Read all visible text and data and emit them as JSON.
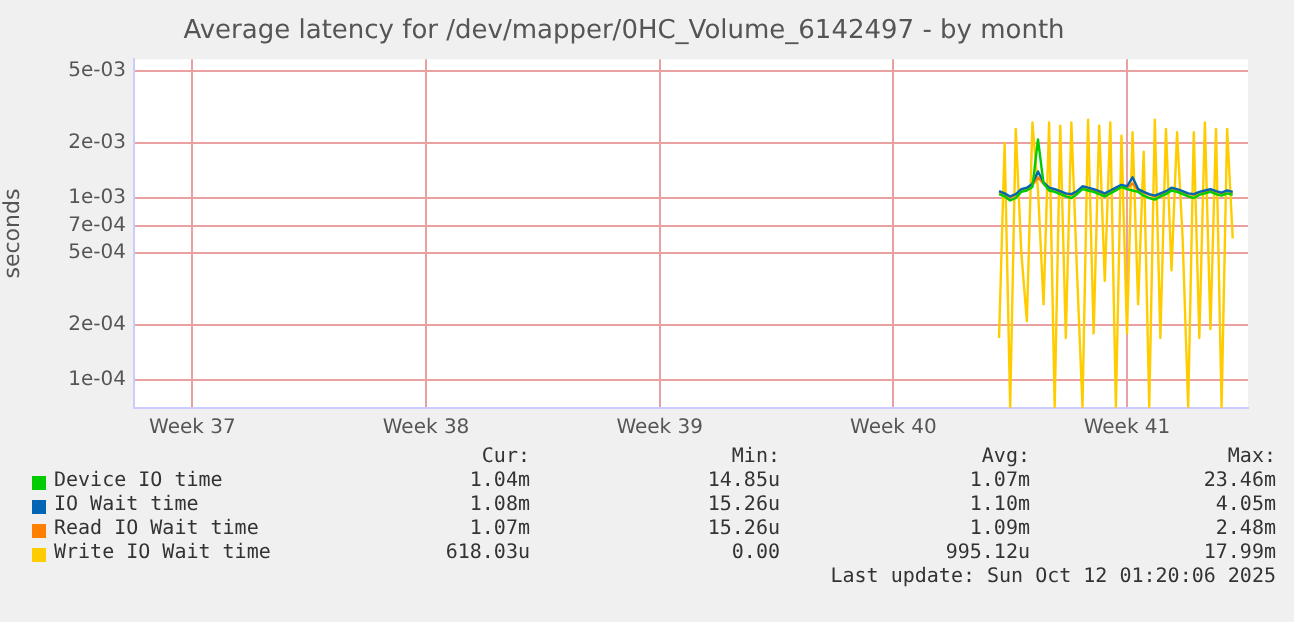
{
  "chart_data": {
    "type": "line",
    "title": "Average latency for /dev/mapper/0HC_Volume_6142497 - by month",
    "ylabel": "seconds",
    "log": "y",
    "grid": true,
    "legend": "bottom",
    "marker": "none",
    "line_style": "solid",
    "x": [
      "2025-10-05T16:00",
      "2025-10-05T20:00",
      "2025-10-06T00:00",
      "2025-10-06T04:00",
      "2025-10-06T08:00",
      "2025-10-06T12:00",
      "2025-10-06T16:00",
      "2025-10-06T20:00",
      "2025-10-07T00:00",
      "2025-10-07T04:00",
      "2025-10-07T08:00",
      "2025-10-07T12:00",
      "2025-10-07T16:00",
      "2025-10-07T20:00",
      "2025-10-08T00:00",
      "2025-10-08T04:00",
      "2025-10-08T08:00",
      "2025-10-08T12:00",
      "2025-10-08T16:00",
      "2025-10-08T20:00",
      "2025-10-09T00:00",
      "2025-10-09T04:00",
      "2025-10-09T08:00",
      "2025-10-09T12:00",
      "2025-10-09T16:00",
      "2025-10-09T20:00",
      "2025-10-10T00:00",
      "2025-10-10T04:00",
      "2025-10-10T08:00",
      "2025-10-10T12:00",
      "2025-10-10T16:00",
      "2025-10-10T20:00",
      "2025-10-11T00:00",
      "2025-10-11T04:00",
      "2025-10-11T08:00",
      "2025-10-11T12:00",
      "2025-10-11T16:00",
      "2025-10-11T20:00",
      "2025-10-12T00:00",
      "2025-10-12T04:00",
      "2025-10-12T08:00",
      "2025-10-12T12:00",
      "2025-10-12T16:00"
    ],
    "xlim": [
      "2025-09-09T18:00",
      "2025-10-13T03:00"
    ],
    "xticks": [
      {
        "value": "2025-09-11T12:00",
        "label": "Week 37"
      },
      {
        "value": "2025-09-18T12:00",
        "label": "Week 38"
      },
      {
        "value": "2025-09-25T12:00",
        "label": "Week 39"
      },
      {
        "value": "2025-10-02T12:00",
        "label": "Week 40"
      },
      {
        "value": "2025-10-09T12:00",
        "label": "Week 41"
      }
    ],
    "ylim": [
      7e-05,
      0.0058
    ],
    "yticks": [
      {
        "value": 0.0001,
        "label": "1e-04"
      },
      {
        "value": 0.0002,
        "label": "2e-04"
      },
      {
        "value": 0.0005,
        "label": "5e-04"
      },
      {
        "value": 0.0007,
        "label": "7e-04"
      },
      {
        "value": 0.001,
        "label": "1e-03"
      },
      {
        "value": 0.002,
        "label": "2e-03"
      },
      {
        "value": 0.005,
        "label": "5e-03"
      }
    ],
    "series": [
      {
        "name": "Device IO time",
        "color": "#00cc00",
        "values": [
          0.00105,
          0.00102,
          0.00097,
          0.001,
          0.00108,
          0.0011,
          0.00115,
          0.0021,
          0.0012,
          0.0011,
          0.00108,
          0.00105,
          0.00102,
          0.001,
          0.00105,
          0.00112,
          0.0011,
          0.00108,
          0.00105,
          0.00102,
          0.00106,
          0.0011,
          0.00115,
          0.00112,
          0.0011,
          0.00108,
          0.00103,
          0.001,
          0.00098,
          0.00102,
          0.00105,
          0.0011,
          0.00108,
          0.00105,
          0.00102,
          0.001,
          0.00104,
          0.00106,
          0.00108,
          0.00105,
          0.00103,
          0.00106,
          0.00104
        ]
      },
      {
        "name": "IO Wait time",
        "color": "#0066b3",
        "values": [
          0.00109,
          0.00106,
          0.00102,
          0.00105,
          0.00112,
          0.00114,
          0.0012,
          0.0014,
          0.00122,
          0.00114,
          0.00112,
          0.00109,
          0.00106,
          0.00105,
          0.00109,
          0.00116,
          0.00114,
          0.00112,
          0.00109,
          0.00106,
          0.0011,
          0.00114,
          0.00118,
          0.00116,
          0.0013,
          0.00112,
          0.00108,
          0.00105,
          0.00103,
          0.00106,
          0.00109,
          0.00114,
          0.00112,
          0.00109,
          0.00106,
          0.00105,
          0.00108,
          0.0011,
          0.00112,
          0.00109,
          0.00107,
          0.0011,
          0.00108
        ]
      },
      {
        "name": "Read IO Wait time",
        "color": "#ff8000",
        "values": [
          0.00108,
          0.00105,
          0.00101,
          0.00104,
          0.0011,
          0.00112,
          0.00118,
          0.0013,
          0.0012,
          0.00112,
          0.0011,
          0.00108,
          0.00105,
          0.00104,
          0.00108,
          0.00114,
          0.00112,
          0.0011,
          0.00108,
          0.00105,
          0.00109,
          0.00112,
          0.00116,
          0.00114,
          0.0012,
          0.0011,
          0.00107,
          0.00104,
          0.00102,
          0.00105,
          0.00108,
          0.00112,
          0.0011,
          0.00108,
          0.00105,
          0.00104,
          0.00107,
          0.00109,
          0.0011,
          0.00108,
          0.00106,
          0.00109,
          0.00107
        ]
      },
      {
        "name": "Write IO Wait time",
        "color": "#ffcc00",
        "values": [
          0.00017,
          0.002,
          7.1e-05,
          0.0024,
          0.0005,
          0.00021,
          0.0026,
          0.0011,
          0.00026,
          0.0026,
          7.1e-05,
          0.0025,
          0.00017,
          0.0026,
          0.0004,
          7.1e-05,
          0.0027,
          0.00018,
          0.0025,
          0.00035,
          0.0026,
          7.1e-05,
          0.0022,
          0.00018,
          0.0023,
          0.00026,
          0.0018,
          7.1e-05,
          0.0027,
          0.00017,
          0.0024,
          0.0004,
          0.0023,
          0.0006,
          7.1e-05,
          0.0023,
          0.00017,
          0.0026,
          0.00019,
          0.0024,
          7.1e-05,
          0.0024,
          0.0006
        ]
      }
    ],
    "annotations": [
      "Cur:",
      "Min:",
      "Avg:",
      "Max:",
      "1.04m",
      "14.85u",
      "1.07m",
      "23.46m",
      "1.08m",
      "15.26u",
      "1.10m",
      "4.05m",
      "1.07m",
      "15.26u",
      "1.09m",
      "2.48m",
      "618.03u",
      "0.00",
      "995.12u",
      "17.99m",
      "Last update: Sun Oct 12 01:20:06 2025"
    ]
  }
}
